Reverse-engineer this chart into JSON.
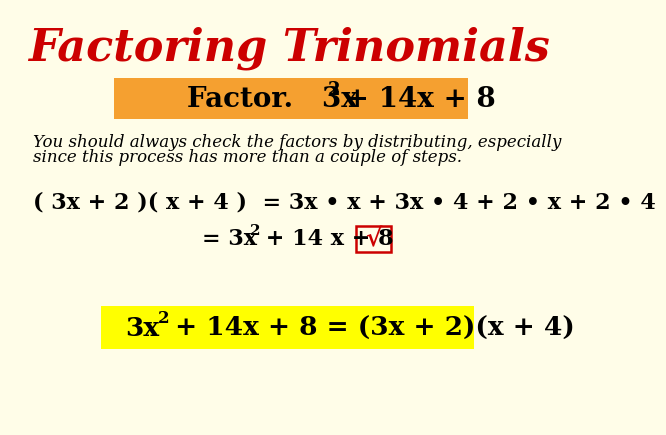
{
  "background_color": "#FFFDE8",
  "title": "Factoring Trinomials",
  "title_color": "#CC0000",
  "title_fontsize": 32,
  "orange_box_color": "#F5A030",
  "italic_text_line1": "You should always check the factors by distributing, especially",
  "italic_text_line2": "since this process has more than a couple of steps.",
  "italic_fontsize": 12,
  "dist_line1": "( 3x + 2 )( x + 4 )  = 3x • x + 3x • 4 + 2 • x + 2 • 4",
  "math_fontsize": 16,
  "yellow_box_color": "#FFFF00",
  "sqrt_box_color": "#CC0000",
  "body_text_color": "#000000"
}
